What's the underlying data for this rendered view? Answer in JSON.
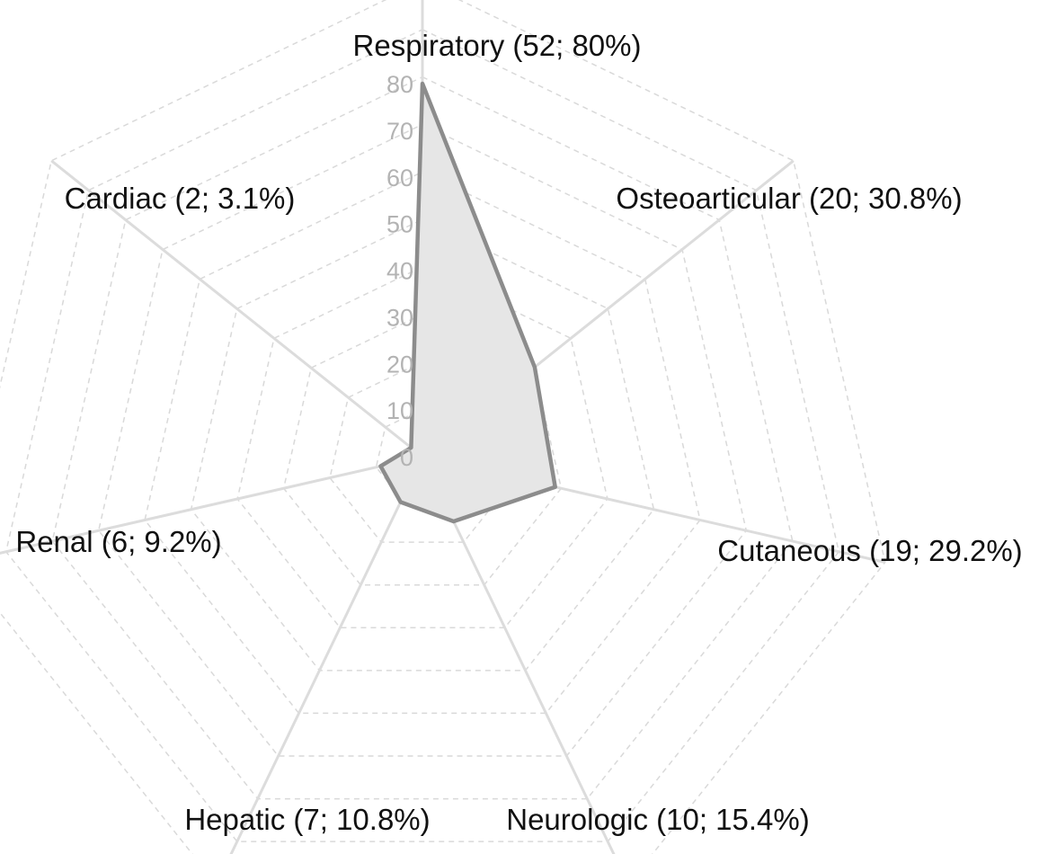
{
  "chart_data": {
    "type": "radar",
    "title": "",
    "categories": [
      "Respiratory",
      "Osteoarticular",
      "Cutaneous",
      "Neurologic",
      "Hepatic",
      "Renal",
      "Cardiac"
    ],
    "category_labels": [
      "Respiratory (52; 80%)",
      "Osteoarticular (20; 30.8%)",
      "Cutaneous (19; 29.2%)",
      "Neurologic (10; 15.4%)",
      "Hepatic (7; 10.8%)",
      "Renal (6; 9.2%)",
      "Cardiac (2; 3.1%)"
    ],
    "counts": [
      52,
      20,
      19,
      10,
      7,
      6,
      2
    ],
    "values": [
      80,
      30.8,
      29.2,
      15.4,
      10.8,
      9.2,
      3.1
    ],
    "ticks": [
      "0",
      "10",
      "20",
      "30",
      "40",
      "50",
      "60",
      "70",
      "80"
    ],
    "tick_values": [
      0,
      10,
      20,
      30,
      40,
      50,
      60,
      70,
      80
    ],
    "rlim": [
      0,
      80
    ],
    "grid": true,
    "legend": "none",
    "colors": {
      "series_fill": "#e6e6e6",
      "series_stroke": "#8c8c8c",
      "spoke": "#dcdcdc",
      "grid": "#d9d9d9",
      "tick_text": "#b3b3b3",
      "label_text": "#111111"
    }
  }
}
